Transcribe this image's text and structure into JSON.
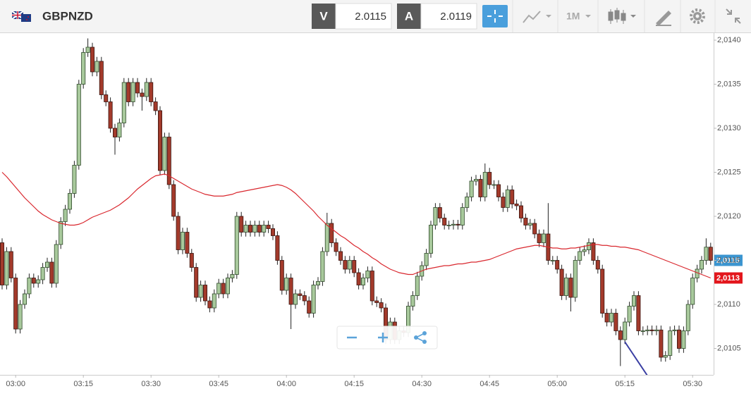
{
  "toolbar": {
    "symbol": "GBPNZD",
    "bid_label": "V",
    "bid": "2.0115",
    "ask_label": "A",
    "ask": "2.0119",
    "timeframe": "1M"
  },
  "chart_data": {
    "type": "candlestick",
    "categories": [
      null,
      null,
      null,
      "03:00",
      null,
      null,
      null,
      null,
      null,
      null,
      null,
      null,
      null,
      null,
      null,
      null,
      null,
      null,
      "03:15",
      null,
      null,
      null,
      null,
      null,
      null,
      null,
      null,
      null,
      null,
      null,
      null,
      null,
      null,
      "03:30",
      null,
      null,
      null,
      null,
      null,
      null,
      null,
      null,
      null,
      null,
      null,
      null,
      null,
      null,
      "03:45",
      null,
      null,
      null,
      null,
      null,
      null,
      null,
      null,
      null,
      null,
      null,
      null,
      null,
      null,
      "04:00",
      null,
      null,
      null,
      null,
      null,
      null,
      null,
      null,
      null,
      null,
      null,
      null,
      null,
      null,
      "04:15",
      null,
      null,
      null,
      null,
      null,
      null,
      null,
      null,
      null,
      null,
      null,
      null,
      null,
      null,
      "04:30",
      null,
      null,
      null,
      null,
      null,
      null,
      null,
      null,
      null,
      null,
      null,
      null,
      null,
      null,
      "04:45",
      null,
      null,
      null,
      null,
      null,
      null,
      null,
      null,
      null,
      null,
      null,
      null,
      null,
      null,
      "05:00",
      null,
      null,
      null,
      null,
      null,
      null,
      null,
      null,
      null,
      null,
      null,
      null,
      null,
      null,
      "05:15",
      null,
      null,
      null,
      null,
      null,
      null,
      null,
      null,
      null,
      null,
      null,
      null,
      null,
      null,
      "05:30",
      null,
      null,
      null,
      null
    ],
    "open": [
      2.0117,
      2.01122,
      2.0116,
      2.0113,
      2.01072,
      2.011,
      2.01112,
      2.0113,
      2.01124,
      2.01128,
      2.01142,
      2.01148,
      2.01124,
      2.01168,
      2.01194,
      2.01208,
      2.01226,
      2.01258,
      2.0135,
      2.01386,
      2.01392,
      2.01364,
      2.01376,
      2.01338,
      2.0133,
      2.013,
      2.0129,
      2.01306,
      2.01352,
      2.0133,
      2.01352,
      2.0134,
      2.01336,
      2.01352,
      2.0133,
      2.0132,
      2.01252,
      2.0129,
      2.01236,
      2.012,
      2.01162,
      2.01182,
      2.01158,
      2.01142,
      2.01108,
      2.01122,
      2.01104,
      2.01096,
      2.01112,
      2.01124,
      2.01112,
      2.0113,
      2.01134,
      2.012,
      2.01182,
      2.0119,
      2.01182,
      2.0119,
      2.01182,
      2.0119,
      2.01186,
      2.01178,
      2.0115,
      2.01116,
      2.0113,
      2.011,
      2.01112,
      2.0111,
      2.01104,
      2.0109,
      2.01122,
      2.01126,
      2.0116,
      2.01192,
      2.0117,
      2.0116,
      2.0115,
      2.0114,
      2.0115,
      2.01136,
      2.01122,
      2.0113,
      2.01138,
      2.01104,
      2.01102,
      2.01096,
      2.0106,
      2.0108,
      2.0106,
      2.0107,
      2.01068,
      2.01098,
      2.0111,
      2.01132,
      2.01144,
      2.01158,
      2.0119,
      2.0121,
      2.01198,
      2.0119,
      2.0119,
      2.01191,
      2.0119,
      2.0121,
      2.01222,
      2.0124,
      2.01242,
      2.01222,
      2.0125,
      2.01236,
      2.01236,
      2.01222,
      2.0121,
      2.0123,
      2.01214,
      2.01212,
      2.01198,
      2.0119,
      2.01192,
      2.0118,
      2.0117,
      2.0118,
      2.0115,
      2.0115,
      2.0114,
      2.0111,
      2.0113,
      2.01108,
      2.0115,
      2.0116,
      2.01162,
      2.0117,
      2.0115,
      2.0114,
      2.0109,
      2.0108,
      2.0109,
      2.0107,
      2.0106,
      2.0108,
      2.01098,
      2.0111,
      2.0107,
      2.0107,
      2.01071,
      2.0107,
      2.01071,
      2.0104,
      2.01042,
      2.0107,
      2.01071,
      2.0105,
      2.0107,
      2.011,
      2.0113,
      2.0114,
      2.0115,
      2.01165
    ],
    "high": [
      2.01175,
      2.01165,
      2.01165,
      2.01135,
      2.01105,
      2.01117,
      2.01135,
      2.01135,
      2.01133,
      2.01147,
      2.01153,
      2.01153,
      2.01173,
      2.01199,
      2.01213,
      2.01231,
      2.01263,
      2.01355,
      2.01391,
      2.01402,
      2.01397,
      2.01381,
      2.01381,
      2.01343,
      2.01335,
      2.01305,
      2.01311,
      2.01357,
      2.01357,
      2.01357,
      2.01357,
      2.01345,
      2.01357,
      2.01357,
      2.01335,
      2.01325,
      2.01295,
      2.01295,
      2.01241,
      2.01205,
      2.01187,
      2.01187,
      2.01163,
      2.01147,
      2.01127,
      2.01127,
      2.01109,
      2.01117,
      2.01129,
      2.01129,
      2.01135,
      2.01139,
      2.01205,
      2.01205,
      2.01195,
      2.01195,
      2.01195,
      2.01195,
      2.01195,
      2.01195,
      2.01191,
      2.01183,
      2.01155,
      2.01135,
      2.01135,
      2.01117,
      2.01117,
      2.01115,
      2.01109,
      2.01127,
      2.01131,
      2.01165,
      2.01204,
      2.01197,
      2.01175,
      2.01165,
      2.01155,
      2.01155,
      2.01155,
      2.01141,
      2.01135,
      2.01143,
      2.01143,
      2.01109,
      2.01107,
      2.01101,
      2.01085,
      2.01085,
      2.01075,
      2.01075,
      2.01103,
      2.01115,
      2.01137,
      2.01149,
      2.01163,
      2.01195,
      2.01215,
      2.01215,
      2.01203,
      2.01195,
      2.01196,
      2.01196,
      2.01215,
      2.01227,
      2.01245,
      2.01247,
      2.01247,
      2.0126,
      2.01255,
      2.01241,
      2.01241,
      2.01227,
      2.01235,
      2.01235,
      2.01219,
      2.01217,
      2.01203,
      2.01197,
      2.01197,
      2.01185,
      2.01185,
      2.01215,
      2.01155,
      2.01155,
      2.01145,
      2.01135,
      2.01135,
      2.01155,
      2.01165,
      2.01167,
      2.01175,
      2.01175,
      2.01155,
      2.01145,
      2.01095,
      2.01095,
      2.01095,
      2.01075,
      2.01085,
      2.01103,
      2.01115,
      2.01115,
      2.01075,
      2.01076,
      2.01076,
      2.01076,
      2.01076,
      2.01047,
      2.01075,
      2.01076,
      2.01076,
      2.01075,
      2.01105,
      2.01135,
      2.01145,
      2.01155,
      2.01175,
      2.0117
    ],
    "low": [
      2.01117,
      2.01117,
      2.01125,
      2.01067,
      2.01067,
      2.01095,
      2.01107,
      2.01119,
      2.01119,
      2.01123,
      2.01137,
      2.01119,
      2.01119,
      2.01163,
      2.01189,
      2.01203,
      2.01221,
      2.01253,
      2.01345,
      2.01381,
      2.01359,
      2.01359,
      2.01333,
      2.01325,
      2.01295,
      2.0127,
      2.01285,
      2.01301,
      2.01325,
      2.01325,
      2.01335,
      2.0132,
      2.01331,
      2.01325,
      2.01315,
      2.01247,
      2.01247,
      2.01231,
      2.01195,
      2.01157,
      2.01157,
      2.01153,
      2.01137,
      2.01103,
      2.01103,
      2.01099,
      2.01091,
      2.01091,
      2.01107,
      2.01107,
      2.01107,
      2.01125,
      2.01129,
      2.01177,
      2.01177,
      2.01177,
      2.01177,
      2.01177,
      2.01177,
      2.01181,
      2.01173,
      2.01145,
      2.01111,
      2.01111,
      2.01072,
      2.01095,
      2.01105,
      2.01099,
      2.01085,
      2.01085,
      2.01117,
      2.01121,
      2.01155,
      2.01165,
      2.01155,
      2.01145,
      2.01135,
      2.01135,
      2.01131,
      2.01117,
      2.01117,
      2.01125,
      2.01099,
      2.01097,
      2.01091,
      2.01055,
      2.01055,
      2.01055,
      2.01055,
      2.01063,
      2.01063,
      2.01093,
      2.01105,
      2.01127,
      2.01139,
      2.01153,
      2.01185,
      2.01193,
      2.01185,
      2.01185,
      2.01185,
      2.01185,
      2.01185,
      2.01205,
      2.01217,
      2.01235,
      2.01217,
      2.01217,
      2.01231,
      2.01231,
      2.01217,
      2.01205,
      2.01205,
      2.01209,
      2.01207,
      2.01193,
      2.01185,
      2.01185,
      2.01175,
      2.01165,
      2.01165,
      2.01145,
      2.01145,
      2.01135,
      2.01105,
      2.01105,
      2.01092,
      2.01103,
      2.01145,
      2.01155,
      2.01157,
      2.01145,
      2.01135,
      2.01085,
      2.01075,
      2.01075,
      2.01065,
      2.0103,
      2.01055,
      2.01075,
      2.01093,
      2.01065,
      2.01065,
      2.01065,
      2.01065,
      2.01065,
      2.01035,
      2.01035,
      2.01037,
      2.01065,
      2.01045,
      2.01045,
      2.01065,
      2.01095,
      2.01125,
      2.01135,
      2.01145,
      2.01145
    ],
    "close": [
      2.01122,
      2.0116,
      2.0113,
      2.01072,
      2.011,
      2.01112,
      2.0113,
      2.01124,
      2.01128,
      2.01142,
      2.01148,
      2.01124,
      2.01168,
      2.01194,
      2.01208,
      2.01226,
      2.01258,
      2.0135,
      2.01386,
      2.01392,
      2.01364,
      2.01376,
      2.01338,
      2.0133,
      2.013,
      2.0129,
      2.01306,
      2.01352,
      2.0133,
      2.01352,
      2.0134,
      2.01336,
      2.01352,
      2.0133,
      2.0132,
      2.01252,
      2.0129,
      2.01236,
      2.012,
      2.01162,
      2.01182,
      2.01158,
      2.01142,
      2.01108,
      2.01122,
      2.01104,
      2.01096,
      2.01112,
      2.01124,
      2.01112,
      2.0113,
      2.01134,
      2.012,
      2.01182,
      2.0119,
      2.01182,
      2.0119,
      2.01182,
      2.0119,
      2.01186,
      2.01178,
      2.0115,
      2.01116,
      2.0113,
      2.011,
      2.01112,
      2.0111,
      2.01104,
      2.0109,
      2.01122,
      2.01126,
      2.0116,
      2.01192,
      2.0117,
      2.0116,
      2.0115,
      2.0114,
      2.0115,
      2.01136,
      2.01122,
      2.0113,
      2.01138,
      2.01104,
      2.01102,
      2.01096,
      2.0106,
      2.0108,
      2.0106,
      2.0107,
      2.01068,
      2.01098,
      2.0111,
      2.01132,
      2.01144,
      2.01158,
      2.0119,
      2.0121,
      2.01198,
      2.0119,
      2.0119,
      2.01191,
      2.0119,
      2.0121,
      2.01222,
      2.0124,
      2.01242,
      2.01222,
      2.0125,
      2.01236,
      2.01236,
      2.01222,
      2.0121,
      2.0123,
      2.01214,
      2.01212,
      2.01198,
      2.0119,
      2.01192,
      2.0118,
      2.0117,
      2.0118,
      2.0115,
      2.0115,
      2.0114,
      2.0111,
      2.0113,
      2.01108,
      2.0115,
      2.0116,
      2.01162,
      2.0117,
      2.0115,
      2.0114,
      2.0109,
      2.0108,
      2.0109,
      2.0107,
      2.0106,
      2.0108,
      2.01098,
      2.0111,
      2.0107,
      2.0107,
      2.01071,
      2.0107,
      2.01071,
      2.0104,
      2.01042,
      2.0107,
      2.01071,
      2.0105,
      2.0107,
      2.011,
      2.0113,
      2.0114,
      2.0115,
      2.01165,
      2.0115
    ],
    "up_color": "#a8c99c",
    "down_color": "#a33a2b",
    "moving_average": {
      "color": "#d9272e",
      "values": [
        2.0125,
        2.01245,
        2.01239,
        2.01233,
        2.01227,
        2.01221,
        2.01216,
        2.01211,
        2.01206,
        2.01202,
        2.01199,
        2.01196,
        2.01194,
        2.01192,
        2.01191,
        2.0119,
        2.0119,
        2.01191,
        2.01193,
        2.01196,
        2.01199,
        2.01201,
        2.01203,
        2.01205,
        2.01207,
        2.0121,
        2.01213,
        2.01217,
        2.01221,
        2.01226,
        2.01231,
        2.01235,
        2.01239,
        2.01243,
        2.01246,
        2.01247,
        2.01248,
        2.01246,
        2.01243,
        2.0124,
        2.01237,
        2.01234,
        2.01231,
        2.01229,
        2.01227,
        2.01225,
        2.01224,
        2.01223,
        2.01223,
        2.01223,
        2.01224,
        2.01225,
        2.01227,
        2.01228,
        2.01229,
        2.0123,
        2.01231,
        2.01232,
        2.01233,
        2.01234,
        2.01235,
        2.01236,
        2.01235,
        2.01233,
        2.0123,
        2.01226,
        2.01221,
        2.01216,
        2.01211,
        2.01206,
        2.012,
        2.01195,
        2.0119,
        2.01186,
        2.01182,
        2.01178,
        2.01175,
        2.01171,
        2.01167,
        2.01164,
        2.0116,
        2.01157,
        2.01153,
        2.0115,
        2.01146,
        2.01143,
        2.0114,
        2.01138,
        2.01136,
        2.01135,
        2.01134,
        2.01134,
        2.01136,
        2.01138,
        2.0114,
        2.01141,
        2.01142,
        2.01143,
        2.01144,
        2.01144,
        2.01145,
        2.01146,
        2.01146,
        2.01147,
        2.01148,
        2.01148,
        2.01149,
        2.0115,
        2.01151,
        2.01153,
        2.01155,
        2.01157,
        2.01159,
        2.01161,
        2.01163,
        2.01164,
        2.01165,
        2.01166,
        2.01167,
        2.01167,
        2.01166,
        2.01165,
        2.01164,
        2.01164,
        2.01163,
        2.01163,
        2.01164,
        2.01164,
        2.01165,
        2.01166,
        2.01167,
        2.01168,
        2.01168,
        2.01167,
        2.01167,
        2.01166,
        2.01166,
        2.01165,
        2.01165,
        2.01164,
        2.01163,
        2.01162,
        2.0116,
        2.01158,
        2.01156,
        2.01154,
        2.01152,
        2.0115,
        2.01148,
        2.01146,
        2.01144,
        2.01142,
        2.0114,
        2.01138,
        2.01136,
        2.01134,
        2.01132,
        2.0113
      ]
    },
    "ylim": [
      2.0102,
      2.01408
    ],
    "yticks": [
      {
        "value": 2.0105,
        "label": "2,0105"
      },
      {
        "value": 2.011,
        "label": "2,0110"
      },
      {
        "value": 2.0115,
        "label": "2,0115"
      },
      {
        "value": 2.012,
        "label": "2,0120"
      },
      {
        "value": 2.0125,
        "label": "2,0125"
      },
      {
        "value": 2.013,
        "label": "2,0130"
      },
      {
        "value": 2.0135,
        "label": "2,0135"
      },
      {
        "value": 2.014,
        "label": "2,0140"
      }
    ],
    "grid": false,
    "price_tags": [
      {
        "value": 2.0115,
        "label": "2,0115",
        "color": "#3b95d0"
      },
      {
        "value": 2.0113,
        "label": "2,0113",
        "color": "#e3161c"
      }
    ]
  }
}
